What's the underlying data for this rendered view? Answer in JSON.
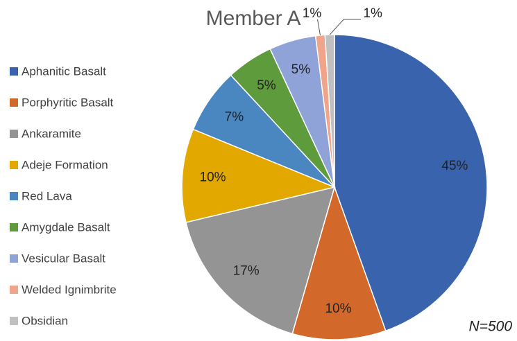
{
  "chart_data": {
    "type": "pie",
    "title": "Member A",
    "annotation": "N=500",
    "categories": [
      "Aphanitic Basalt",
      "Porphyritic Basalt",
      "Ankaramite",
      "Adeje Formation",
      "Red Lava",
      "Amygdale Basalt",
      "Vesicular Basalt",
      "Welded Ignimbrite",
      "Obsidian"
    ],
    "values": [
      45,
      10,
      17,
      10,
      7,
      5,
      5,
      1,
      1
    ],
    "value_labels": [
      "45%",
      "10%",
      "17%",
      "10%",
      "7%",
      "5%",
      "5%",
      "1%",
      "1%"
    ],
    "colors": [
      "#3a63ad",
      "#d2692a",
      "#949494",
      "#e2a800",
      "#4a86c0",
      "#5e9b3c",
      "#8fa3d8",
      "#f0a58a",
      "#c0c0c0"
    ],
    "legend": "left"
  }
}
